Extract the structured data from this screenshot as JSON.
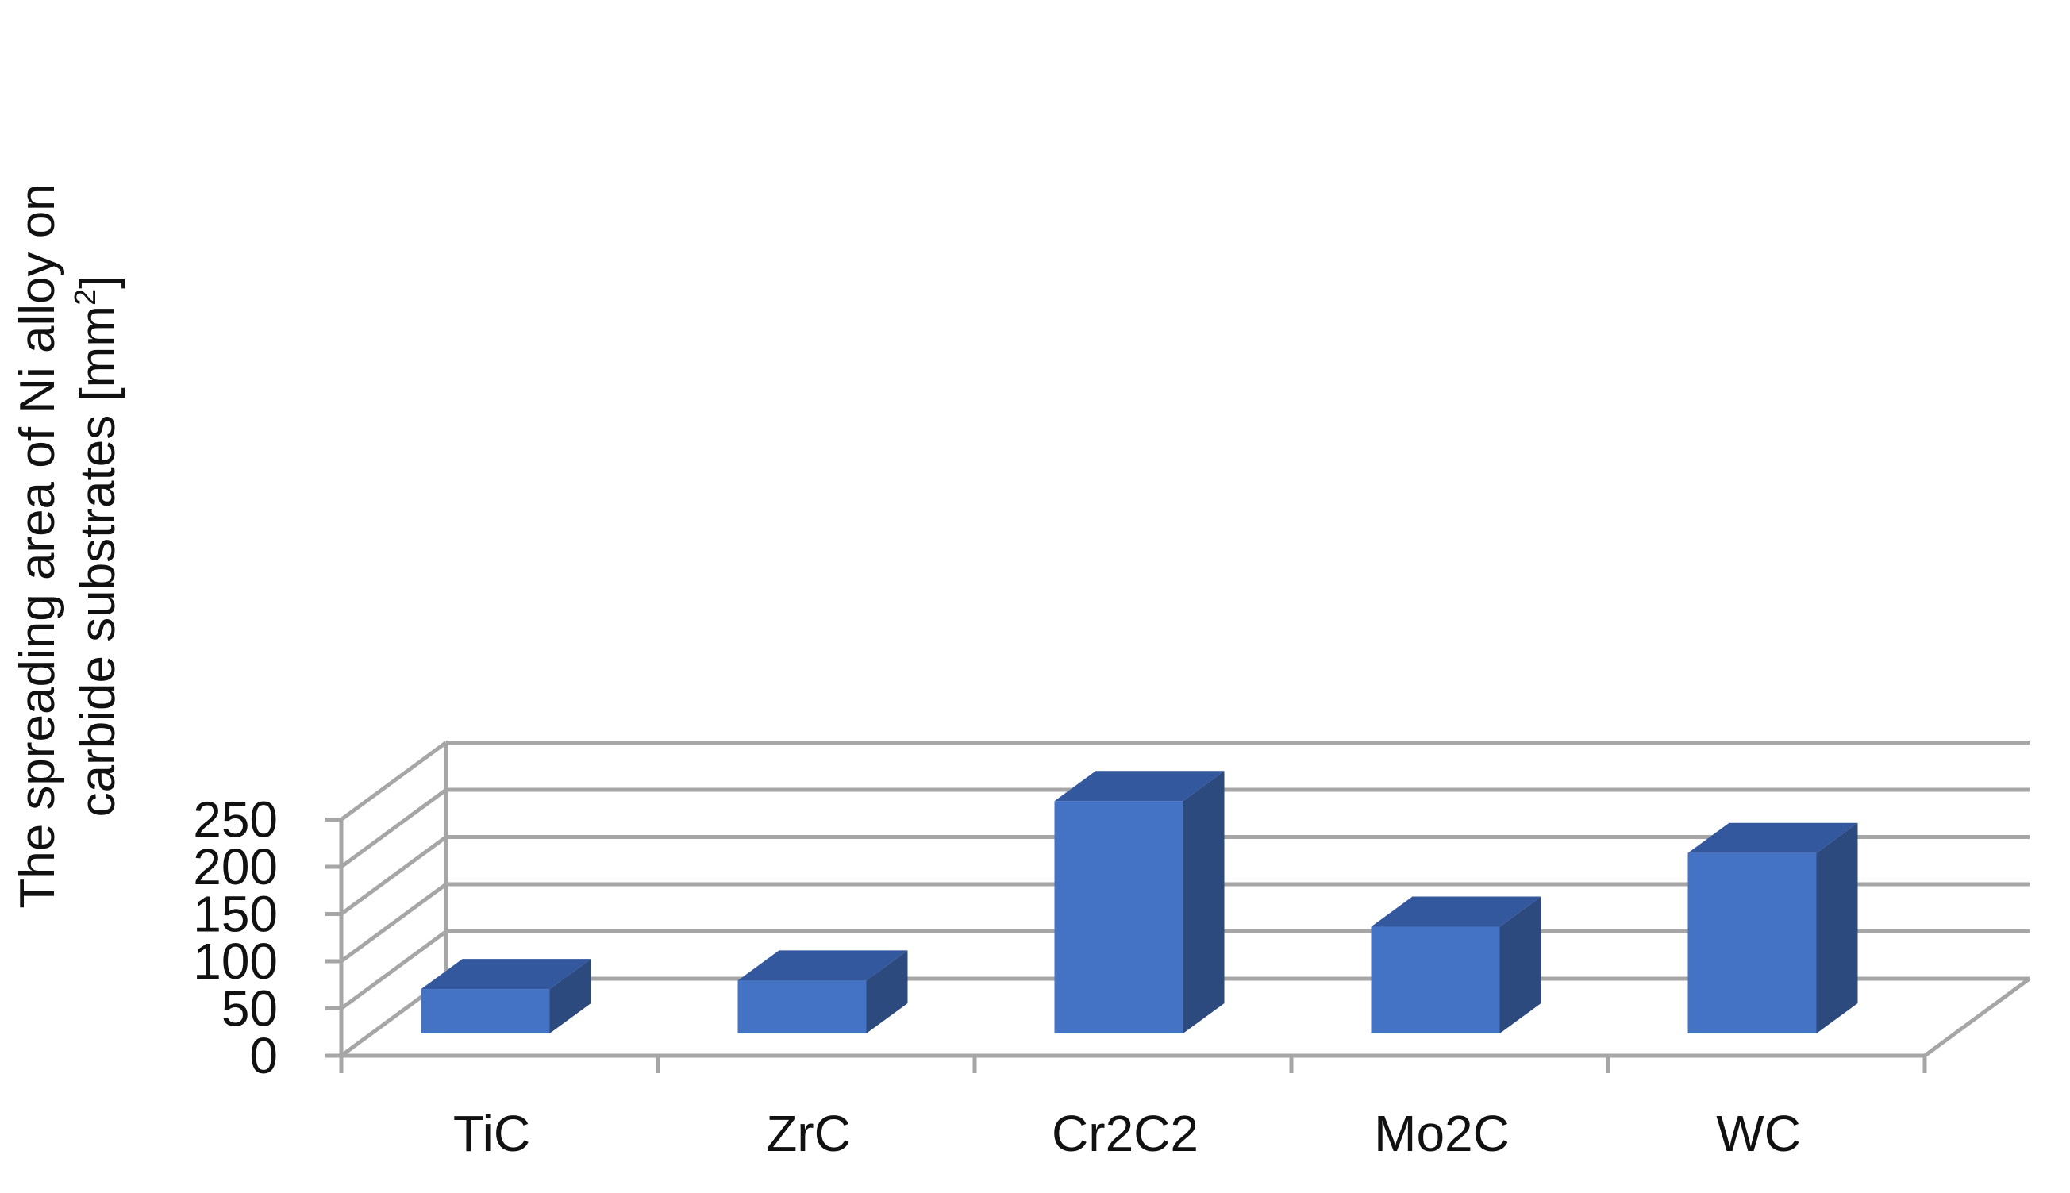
{
  "chart_data": {
    "type": "bar",
    "style": "3d-column",
    "categories": [
      "TiC",
      "ZrC",
      "Cr2C2",
      "Mo2C",
      "WC"
    ],
    "values": [
      47,
      56,
      246,
      113,
      191
    ],
    "ylabel_line1": "The spreading area of Ni alloy on",
    "ylabel_line2": "carbide substrates [mm",
    "ylabel_superscript": "2",
    "ylabel_close": "]",
    "xlabel": "",
    "title": "",
    "ylim": [
      0,
      250
    ],
    "yticks": [
      "0",
      "50",
      "100",
      "150",
      "200",
      "250"
    ],
    "grid": true,
    "legend": "none",
    "colors": {
      "bar_front": "#4472C4",
      "bar_side": "#2C4A7E",
      "bar_top": "#34589D",
      "grid": "#A6A6A6"
    }
  }
}
